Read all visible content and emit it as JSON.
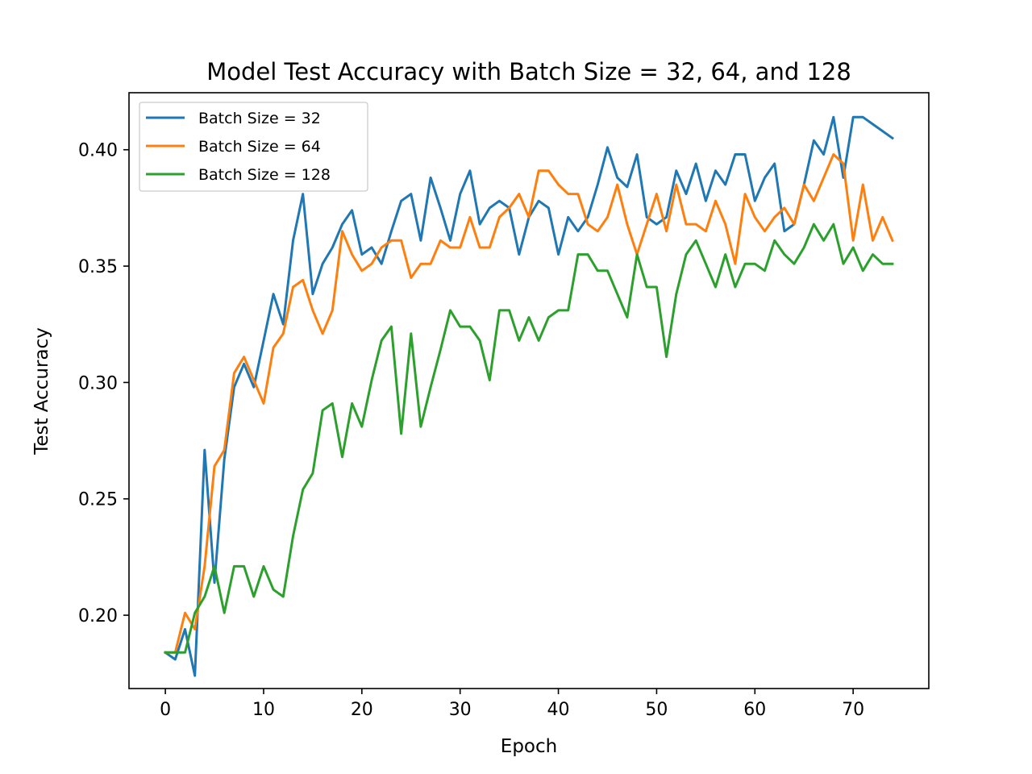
{
  "chart_data": {
    "type": "line",
    "title": "Model Test Accuracy with Batch Size = 32, 64, and 128",
    "xlabel": "Epoch",
    "ylabel": "Test Accuracy",
    "xlim": [
      -3.7,
      77.7
    ],
    "ylim": [
      0.1685,
      0.4245
    ],
    "xticks": [
      0,
      10,
      20,
      30,
      40,
      50,
      60,
      70
    ],
    "yticks": [
      0.2,
      0.25,
      0.3,
      0.35,
      0.4
    ],
    "ytick_labels": [
      "0.20",
      "0.25",
      "0.30",
      "0.35",
      "0.40"
    ],
    "grid": false,
    "legend_position": "upper-left",
    "x": [
      0,
      1,
      2,
      3,
      4,
      5,
      6,
      7,
      8,
      9,
      10,
      11,
      12,
      13,
      14,
      15,
      16,
      17,
      18,
      19,
      20,
      21,
      22,
      23,
      24,
      25,
      26,
      27,
      28,
      29,
      30,
      31,
      32,
      33,
      34,
      35,
      36,
      37,
      38,
      39,
      40,
      41,
      42,
      43,
      44,
      45,
      46,
      47,
      48,
      49,
      50,
      51,
      52,
      53,
      54,
      55,
      56,
      57,
      58,
      59,
      60,
      61,
      62,
      63,
      64,
      65,
      66,
      67,
      68,
      69,
      70,
      71,
      72,
      73,
      74
    ],
    "series": [
      {
        "name": "Batch Size = 32",
        "color": "#1f77b4",
        "values": [
          0.184,
          0.181,
          0.194,
          0.174,
          0.271,
          0.214,
          0.267,
          0.298,
          0.308,
          0.298,
          0.318,
          0.338,
          0.325,
          0.361,
          0.381,
          0.338,
          0.351,
          0.358,
          0.368,
          0.374,
          0.355,
          0.358,
          0.351,
          0.365,
          0.378,
          0.381,
          0.361,
          0.388,
          0.375,
          0.361,
          0.381,
          0.391,
          0.368,
          0.375,
          0.378,
          0.375,
          0.355,
          0.371,
          0.378,
          0.375,
          0.355,
          0.371,
          0.365,
          0.371,
          0.385,
          0.401,
          0.388,
          0.384,
          0.398,
          0.371,
          0.368,
          0.371,
          0.391,
          0.381,
          0.394,
          0.378,
          0.391,
          0.385,
          0.398,
          0.398,
          0.378,
          0.388,
          0.394,
          0.365,
          0.368,
          0.385,
          0.404,
          0.398,
          0.414,
          0.388,
          0.414,
          0.414,
          0.411,
          0.408,
          0.405
        ]
      },
      {
        "name": "Batch Size = 64",
        "color": "#ff7f0e",
        "values": [
          0.184,
          0.184,
          0.201,
          0.194,
          0.221,
          0.264,
          0.271,
          0.304,
          0.311,
          0.301,
          0.291,
          0.315,
          0.321,
          0.341,
          0.344,
          0.331,
          0.321,
          0.331,
          0.365,
          0.355,
          0.348,
          0.351,
          0.358,
          0.361,
          0.361,
          0.345,
          0.351,
          0.351,
          0.361,
          0.358,
          0.358,
          0.371,
          0.358,
          0.358,
          0.371,
          0.375,
          0.381,
          0.371,
          0.391,
          0.391,
          0.385,
          0.381,
          0.381,
          0.368,
          0.365,
          0.371,
          0.385,
          0.368,
          0.355,
          0.368,
          0.381,
          0.365,
          0.385,
          0.368,
          0.368,
          0.365,
          0.378,
          0.368,
          0.351,
          0.381,
          0.371,
          0.365,
          0.371,
          0.375,
          0.368,
          0.385,
          0.378,
          0.388,
          0.398,
          0.394,
          0.361,
          0.385,
          0.361,
          0.371,
          0.361
        ]
      },
      {
        "name": "Batch Size = 128",
        "color": "#2ca02c",
        "values": [
          0.184,
          0.184,
          0.184,
          0.201,
          0.208,
          0.221,
          0.201,
          0.221,
          0.221,
          0.208,
          0.221,
          0.211,
          0.208,
          0.234,
          0.254,
          0.261,
          0.288,
          0.291,
          0.268,
          0.291,
          0.281,
          0.301,
          0.318,
          0.324,
          0.278,
          0.321,
          0.281,
          0.298,
          0.314,
          0.331,
          0.324,
          0.324,
          0.318,
          0.301,
          0.331,
          0.331,
          0.318,
          0.328,
          0.318,
          0.328,
          0.331,
          0.331,
          0.355,
          0.355,
          0.348,
          0.348,
          0.338,
          0.328,
          0.355,
          0.341,
          0.341,
          0.311,
          0.338,
          0.355,
          0.361,
          0.351,
          0.341,
          0.355,
          0.341,
          0.351,
          0.351,
          0.348,
          0.361,
          0.355,
          0.351,
          0.358,
          0.368,
          0.361,
          0.368,
          0.351,
          0.358,
          0.348,
          0.355,
          0.351,
          0.351
        ]
      }
    ]
  }
}
